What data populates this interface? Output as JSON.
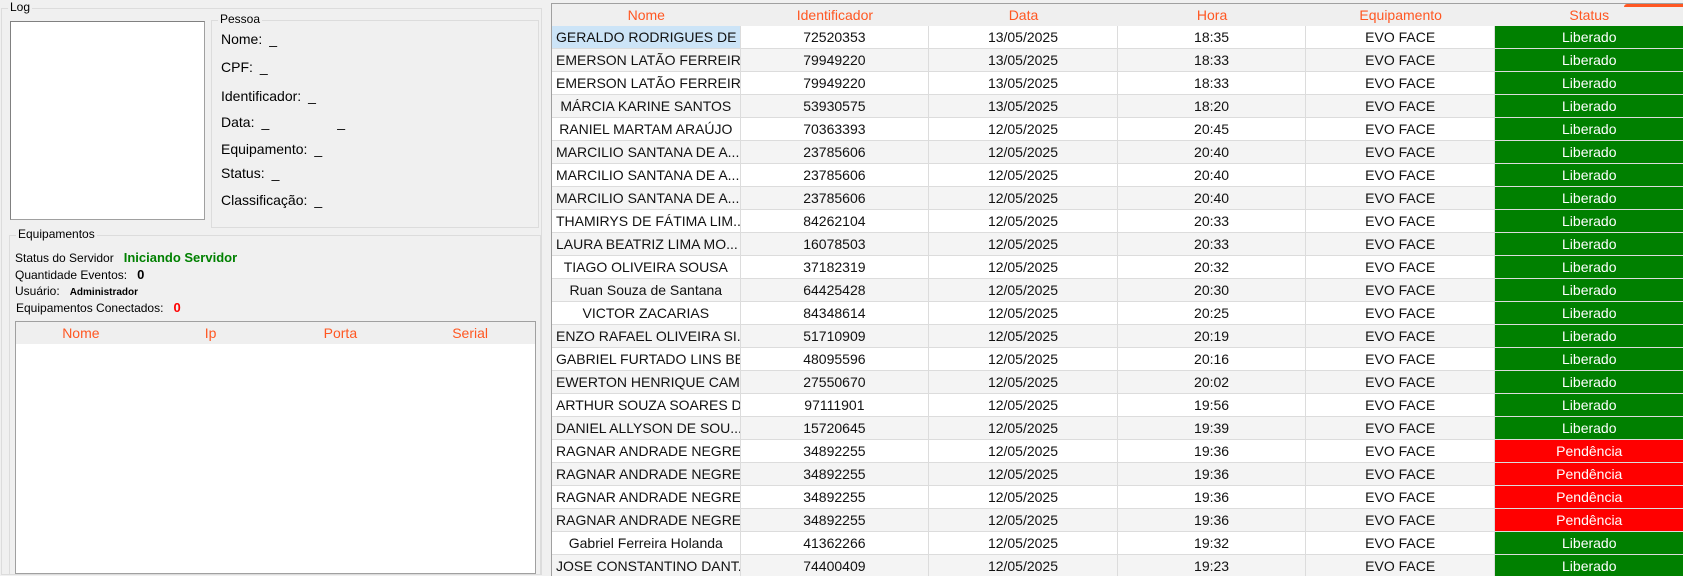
{
  "log": {
    "title": "Log"
  },
  "pessoa": {
    "title": "Pessoa",
    "fields": [
      {
        "label": "Nome:",
        "value": "_"
      },
      {
        "label": "CPF:",
        "value": "_"
      },
      {
        "label": "Identificador:",
        "value": "_"
      },
      {
        "label": "Data:",
        "value": "_",
        "value2": "_"
      },
      {
        "label": "Equipamento:",
        "value": "_"
      },
      {
        "label": "Status:",
        "value": "_"
      },
      {
        "label": "Classificação:",
        "value": "_"
      }
    ]
  },
  "equipamentos": {
    "title": "Equipamentos",
    "status_servidor_label": "Status do Servidor",
    "status_servidor_value": "Iniciando Servidor",
    "quantidade_eventos_label": "Quantidade Eventos:",
    "quantidade_eventos_value": "0",
    "usuario_label": "Usuário:",
    "usuario_value": "Administrador",
    "conectados_label": "Equipamentos Conectados:",
    "conectados_value": "0",
    "columns": [
      "Nome",
      "Ip",
      "Porta",
      "Serial"
    ]
  },
  "colors": {
    "accent": "#ff5722",
    "liberado": "#008000",
    "pendencia": "#ff0000",
    "servidor_status": "#008000"
  },
  "grid": {
    "columns": [
      "Nome",
      "Identificador",
      "Data",
      "Hora",
      "Equipamento",
      "Status"
    ],
    "rows": [
      [
        "GERALDO RODRIGUES DE ...",
        "72520353",
        "13/05/2025",
        "18:35",
        "EVO FACE",
        "Liberado"
      ],
      [
        "EMERSON LATÃO FERREIR...",
        "79949220",
        "13/05/2025",
        "18:33",
        "EVO FACE",
        "Liberado"
      ],
      [
        "EMERSON LATÃO FERREIR...",
        "79949220",
        "13/05/2025",
        "18:33",
        "EVO FACE",
        "Liberado"
      ],
      [
        "MÁRCIA KARINE SANTOS",
        "53930575",
        "13/05/2025",
        "18:20",
        "EVO FACE",
        "Liberado"
      ],
      [
        "RANIEL MARTAM ARAÚJO",
        "70363393",
        "12/05/2025",
        "20:45",
        "EVO FACE",
        "Liberado"
      ],
      [
        "MARCILIO SANTANA DE A...",
        "23785606",
        "12/05/2025",
        "20:40",
        "EVO FACE",
        "Liberado"
      ],
      [
        "MARCILIO SANTANA DE A...",
        "23785606",
        "12/05/2025",
        "20:40",
        "EVO FACE",
        "Liberado"
      ],
      [
        "MARCILIO SANTANA DE A...",
        "23785606",
        "12/05/2025",
        "20:40",
        "EVO FACE",
        "Liberado"
      ],
      [
        "THAMIRYS DE FÁTIMA LIM...",
        "84262104",
        "12/05/2025",
        "20:33",
        "EVO FACE",
        "Liberado"
      ],
      [
        "LAURA BEATRIZ LIMA MO...",
        "16078503",
        "12/05/2025",
        "20:33",
        "EVO FACE",
        "Liberado"
      ],
      [
        "TIAGO OLIVEIRA SOUSA",
        "37182319",
        "12/05/2025",
        "20:32",
        "EVO FACE",
        "Liberado"
      ],
      [
        "Ruan Souza de Santana",
        "64425428",
        "12/05/2025",
        "20:30",
        "EVO FACE",
        "Liberado"
      ],
      [
        "VICTOR ZACARIAS",
        "84348614",
        "12/05/2025",
        "20:25",
        "EVO FACE",
        "Liberado"
      ],
      [
        "ENZO RAFAEL OLIVEIRA SI...",
        "51710909",
        "12/05/2025",
        "20:19",
        "EVO FACE",
        "Liberado"
      ],
      [
        "GABRIEL FURTADO LINS BE...",
        "48095596",
        "12/05/2025",
        "20:16",
        "EVO FACE",
        "Liberado"
      ],
      [
        "EWERTON HENRIQUE CAM...",
        "27550670",
        "12/05/2025",
        "20:02",
        "EVO FACE",
        "Liberado"
      ],
      [
        "ARTHUR SOUZA SOARES D...",
        "97111901",
        "12/05/2025",
        "19:56",
        "EVO FACE",
        "Liberado"
      ],
      [
        "DANIEL ALLYSON DE SOU...",
        "15720645",
        "12/05/2025",
        "19:39",
        "EVO FACE",
        "Liberado"
      ],
      [
        "RAGNAR ANDRADE NEGRE...",
        "34892255",
        "12/05/2025",
        "19:36",
        "EVO FACE",
        "Pendência"
      ],
      [
        "RAGNAR ANDRADE NEGRE...",
        "34892255",
        "12/05/2025",
        "19:36",
        "EVO FACE",
        "Pendência"
      ],
      [
        "RAGNAR ANDRADE NEGRE...",
        "34892255",
        "12/05/2025",
        "19:36",
        "EVO FACE",
        "Pendência"
      ],
      [
        "RAGNAR ANDRADE NEGRE...",
        "34892255",
        "12/05/2025",
        "19:36",
        "EVO FACE",
        "Pendência"
      ],
      [
        "Gabriel Ferreira Holanda",
        "41362266",
        "12/05/2025",
        "19:32",
        "EVO FACE",
        "Liberado"
      ],
      [
        "JOSE CONSTANTINO DANT...",
        "74400409",
        "12/05/2025",
        "19:23",
        "EVO FACE",
        "Liberado"
      ]
    ]
  }
}
